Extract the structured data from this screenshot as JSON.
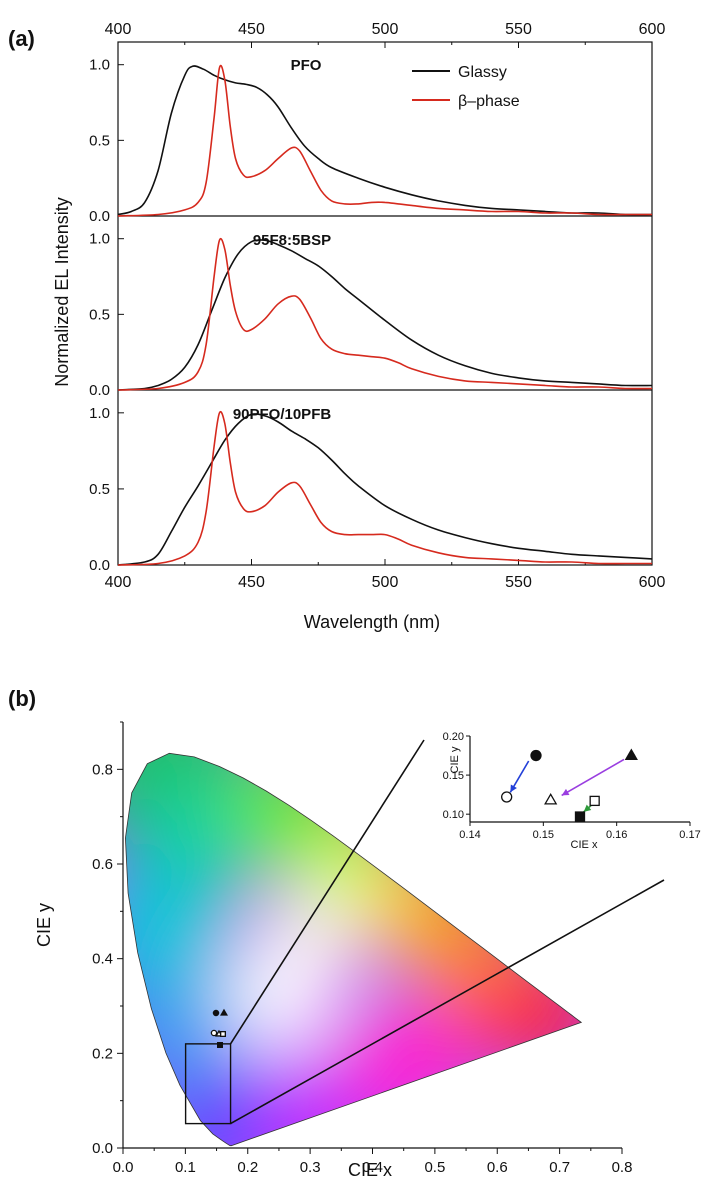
{
  "panel_a": {
    "label": "(a)",
    "xlabel": "Wavelength (nm)",
    "ylabel": "Normalized EL Intensity",
    "legend": [
      "Glassy",
      "β–phase"
    ],
    "colors": {
      "glassy": "#111111",
      "beta": "#d62a1e"
    }
  },
  "panel_b": {
    "label": "(b)",
    "xlabel": "CIE x",
    "ylabel": "CIE y",
    "inset": {
      "xlabel": "CIE x",
      "ylabel": "CIE y"
    }
  },
  "chart_data": [
    {
      "type": "line",
      "title": "PFO",
      "xlabel": "Wavelength (nm)",
      "ylabel": "Normalized EL Intensity",
      "xlim": [
        400,
        600
      ],
      "ylim": [
        0,
        1.15
      ],
      "xticks": [
        400,
        450,
        500,
        550,
        600
      ],
      "yticks": [
        0.0,
        0.5,
        1.0
      ],
      "series": [
        {
          "name": "Glassy",
          "color": "#111111",
          "x": [
            400,
            405,
            410,
            415,
            420,
            425,
            428,
            432,
            436,
            440,
            444,
            448,
            452,
            456,
            460,
            465,
            470,
            475,
            480,
            490,
            500,
            510,
            520,
            530,
            540,
            550,
            560,
            570,
            580,
            590,
            600
          ],
          "y": [
            0.01,
            0.03,
            0.09,
            0.3,
            0.68,
            0.93,
            0.99,
            0.97,
            0.93,
            0.9,
            0.88,
            0.87,
            0.85,
            0.8,
            0.72,
            0.58,
            0.46,
            0.38,
            0.32,
            0.25,
            0.19,
            0.14,
            0.1,
            0.07,
            0.05,
            0.04,
            0.03,
            0.02,
            0.02,
            0.01,
            0.01
          ]
        },
        {
          "name": "β–phase",
          "color": "#d62a1e",
          "x": [
            400,
            415,
            425,
            430,
            433,
            436,
            438,
            440,
            442,
            444,
            447,
            450,
            455,
            460,
            465,
            468,
            472,
            476,
            480,
            485,
            490,
            495,
            500,
            505,
            510,
            520,
            530,
            540,
            550,
            560,
            570,
            580,
            590,
            600
          ],
          "y": [
            0.0,
            0.01,
            0.04,
            0.09,
            0.22,
            0.65,
            0.98,
            0.9,
            0.6,
            0.38,
            0.27,
            0.26,
            0.3,
            0.38,
            0.45,
            0.43,
            0.3,
            0.17,
            0.1,
            0.08,
            0.08,
            0.09,
            0.09,
            0.08,
            0.07,
            0.05,
            0.04,
            0.03,
            0.03,
            0.02,
            0.02,
            0.01,
            0.01,
            0.01
          ]
        }
      ]
    },
    {
      "type": "line",
      "title": "95F8:5BSP",
      "xlim": [
        400,
        600
      ],
      "ylim": [
        0,
        1.15
      ],
      "series": [
        {
          "name": "Glassy",
          "color": "#111111",
          "x": [
            400,
            410,
            415,
            420,
            425,
            430,
            435,
            440,
            445,
            450,
            455,
            460,
            465,
            470,
            475,
            480,
            485,
            490,
            500,
            510,
            520,
            530,
            540,
            550,
            560,
            570,
            580,
            590,
            600
          ],
          "y": [
            0.0,
            0.01,
            0.03,
            0.07,
            0.15,
            0.3,
            0.52,
            0.74,
            0.9,
            0.98,
            0.99,
            0.96,
            0.92,
            0.87,
            0.82,
            0.75,
            0.67,
            0.6,
            0.46,
            0.33,
            0.23,
            0.16,
            0.11,
            0.08,
            0.06,
            0.05,
            0.04,
            0.03,
            0.03
          ]
        },
        {
          "name": "β–phase",
          "color": "#d62a1e",
          "x": [
            400,
            415,
            425,
            430,
            433,
            436,
            438,
            440,
            442,
            444,
            447,
            450,
            455,
            460,
            465,
            468,
            472,
            476,
            480,
            485,
            490,
            495,
            500,
            505,
            510,
            520,
            530,
            540,
            550,
            560,
            570,
            580,
            590,
            600
          ],
          "y": [
            0.0,
            0.01,
            0.05,
            0.12,
            0.3,
            0.75,
            0.99,
            0.93,
            0.7,
            0.52,
            0.4,
            0.4,
            0.47,
            0.57,
            0.62,
            0.6,
            0.48,
            0.34,
            0.27,
            0.24,
            0.23,
            0.22,
            0.21,
            0.18,
            0.14,
            0.09,
            0.06,
            0.05,
            0.04,
            0.03,
            0.02,
            0.02,
            0.01,
            0.01
          ]
        }
      ]
    },
    {
      "type": "line",
      "title": "90PFO/10PFB",
      "xlim": [
        400,
        600
      ],
      "ylim": [
        0,
        1.15
      ],
      "series": [
        {
          "name": "Glassy",
          "color": "#111111",
          "x": [
            400,
            410,
            415,
            420,
            425,
            430,
            435,
            440,
            445,
            450,
            455,
            460,
            465,
            470,
            475,
            480,
            485,
            490,
            500,
            510,
            520,
            530,
            540,
            550,
            560,
            570,
            580,
            590,
            600
          ],
          "y": [
            0.0,
            0.02,
            0.07,
            0.22,
            0.38,
            0.52,
            0.67,
            0.82,
            0.93,
            0.99,
            0.98,
            0.94,
            0.88,
            0.83,
            0.77,
            0.69,
            0.6,
            0.52,
            0.39,
            0.3,
            0.23,
            0.18,
            0.14,
            0.11,
            0.09,
            0.07,
            0.06,
            0.05,
            0.04
          ]
        },
        {
          "name": "β–phase",
          "color": "#d62a1e",
          "x": [
            400,
            415,
            425,
            430,
            433,
            436,
            438,
            440,
            442,
            444,
            447,
            450,
            455,
            460,
            465,
            468,
            472,
            476,
            480,
            485,
            490,
            495,
            500,
            505,
            510,
            520,
            530,
            540,
            550,
            560,
            570,
            580,
            590,
            600
          ],
          "y": [
            0.0,
            0.01,
            0.06,
            0.15,
            0.35,
            0.78,
            1.0,
            0.93,
            0.68,
            0.48,
            0.37,
            0.35,
            0.39,
            0.48,
            0.54,
            0.52,
            0.4,
            0.28,
            0.22,
            0.2,
            0.2,
            0.2,
            0.2,
            0.17,
            0.13,
            0.08,
            0.05,
            0.04,
            0.03,
            0.02,
            0.02,
            0.01,
            0.01,
            0.01
          ]
        }
      ]
    },
    {
      "type": "scatter",
      "xlabel": "CIE x",
      "ylabel": "CIE y",
      "xlim": [
        0.0,
        0.8
      ],
      "ylim": [
        0.0,
        0.9
      ],
      "xticks": [
        0.0,
        0.1,
        0.2,
        0.3,
        0.4,
        0.5,
        0.6,
        0.7,
        0.8
      ],
      "yticks": [
        0.0,
        0.2,
        0.4,
        0.6,
        0.8
      ],
      "zoom_box": {
        "x": [
          0.14,
          0.17
        ],
        "y": [
          0.06,
          0.22
        ]
      },
      "points": [
        {
          "x": 0.149,
          "y": 0.175,
          "marker": "filled-circle"
        },
        {
          "x": 0.145,
          "y": 0.122,
          "marker": "open-circle"
        },
        {
          "x": 0.162,
          "y": 0.175,
          "marker": "filled-triangle"
        },
        {
          "x": 0.151,
          "y": 0.118,
          "marker": "open-triangle"
        },
        {
          "x": 0.157,
          "y": 0.117,
          "marker": "open-square"
        },
        {
          "x": 0.155,
          "y": 0.097,
          "marker": "filled-square"
        }
      ]
    },
    {
      "type": "scatter",
      "xlabel": "CIE x",
      "ylabel": "CIE y",
      "xlim": [
        0.14,
        0.17
      ],
      "ylim": [
        0.09,
        0.2
      ],
      "xticks": [
        0.14,
        0.15,
        0.16,
        0.17
      ],
      "yticks": [
        0.1,
        0.15,
        0.2
      ],
      "points": [
        {
          "x": 0.149,
          "y": 0.175,
          "marker": "filled-circle"
        },
        {
          "x": 0.145,
          "y": 0.122,
          "marker": "open-circle"
        },
        {
          "x": 0.162,
          "y": 0.175,
          "marker": "filled-triangle"
        },
        {
          "x": 0.151,
          "y": 0.118,
          "marker": "open-triangle"
        },
        {
          "x": 0.157,
          "y": 0.117,
          "marker": "open-square"
        },
        {
          "x": 0.155,
          "y": 0.097,
          "marker": "filled-square"
        }
      ],
      "arrows": [
        {
          "from": [
            0.148,
            0.168
          ],
          "to": [
            0.1455,
            0.128
          ],
          "color": "#2340d8"
        },
        {
          "from": [
            0.161,
            0.17
          ],
          "to": [
            0.1525,
            0.124
          ],
          "color": "#9a3ee0"
        },
        {
          "from": [
            0.1565,
            0.111
          ],
          "to": [
            0.1555,
            0.103
          ],
          "color": "#2e9a3a"
        }
      ]
    }
  ]
}
